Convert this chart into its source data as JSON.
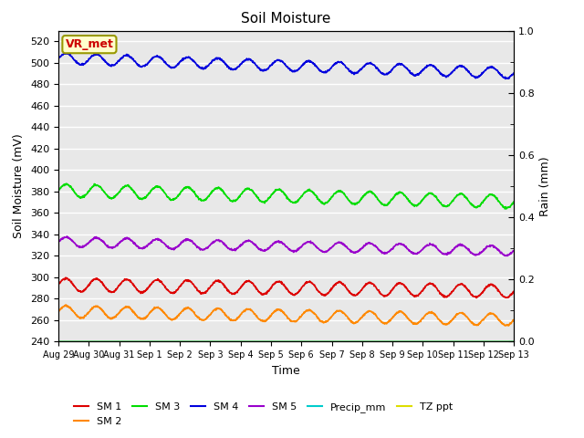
{
  "title": "Soil Moisture",
  "xlabel": "Time",
  "ylabel_left": "Soil Moisture (mV)",
  "ylabel_right": "Rain (mm)",
  "ylim_left": [
    240,
    530
  ],
  "ylim_right": [
    0.0,
    1.0
  ],
  "yticks_left": [
    240,
    260,
    280,
    300,
    320,
    340,
    360,
    380,
    400,
    420,
    440,
    460,
    480,
    500,
    520
  ],
  "yticks_right_vals": [
    0.0,
    0.2,
    0.4,
    0.6,
    0.8,
    1.0
  ],
  "yticks_right_labels": [
    "0.0",
    "0.2",
    "0.4",
    "0.6",
    "0.8",
    "1.0"
  ],
  "duration_days": 15,
  "n_points": 1500,
  "background_color": "#e8e8e8",
  "annotation_text": "VR_met",
  "annotation_color": "#cc0000",
  "annotation_bg": "#ffffcc",
  "annotation_border": "#999900",
  "series": {
    "SM1": {
      "color": "#dd0000",
      "label": "SM 1",
      "base": 293,
      "slope": -0.4,
      "amp": 6.0,
      "freq": 1.0
    },
    "SM2": {
      "color": "#ff8800",
      "label": "SM 2",
      "base": 268,
      "slope": -0.5,
      "amp": 5.5,
      "freq": 1.0
    },
    "SM3": {
      "color": "#00dd00",
      "label": "SM 3",
      "base": 381,
      "slope": -0.7,
      "amp": 6.0,
      "freq": 1.0
    },
    "SM4": {
      "color": "#0000dd",
      "label": "SM 4",
      "base": 504,
      "slope": -0.9,
      "amp": 5.0,
      "freq": 1.0
    },
    "SM5": {
      "color": "#9900cc",
      "label": "SM 5",
      "base": 333,
      "slope": -0.55,
      "amp": 4.5,
      "freq": 1.0
    },
    "Precip_mm": {
      "color": "#00cccc",
      "label": "Precip_mm"
    },
    "TZ_ppt": {
      "color": "#dddd00",
      "label": "TZ ppt",
      "base": 240
    }
  },
  "xtick_labels": [
    "Aug 29",
    "Aug 30",
    "Aug 31",
    "Sep 1",
    "Sep 2",
    "Sep 3",
    "Sep 4",
    "Sep 5",
    "Sep 6",
    "Sep 7",
    "Sep 8",
    "Sep 9",
    "Sep 10",
    "Sep 11",
    "Sep 12",
    "Sep 13"
  ],
  "xtick_positions": [
    0,
    1,
    2,
    3,
    4,
    5,
    6,
    7,
    8,
    9,
    10,
    11,
    12,
    13,
    14,
    15
  ],
  "legend_order": [
    "SM1",
    "SM2",
    "SM3",
    "SM4",
    "SM5",
    "Precip_mm",
    "TZ_ppt"
  ]
}
